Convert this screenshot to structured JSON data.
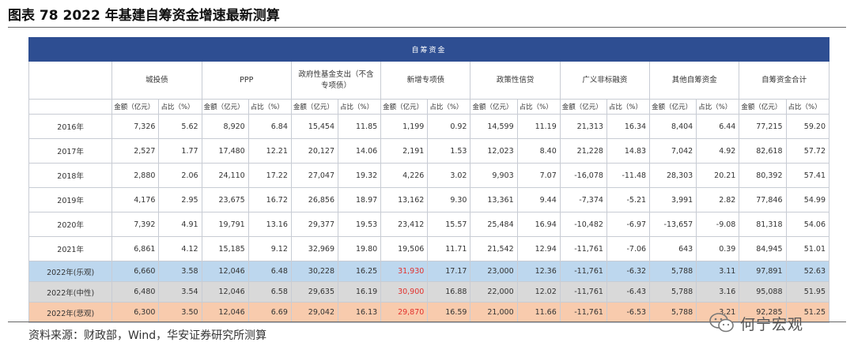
{
  "title": "图表 78 2022 年基建自筹资金增速最新测算",
  "band_label": "自筹资金",
  "categories": [
    "城投债",
    "PPP",
    "政府性基金支出（不含专项债）",
    "新增专项债",
    "政策性信贷",
    "广义非标融资",
    "其他自筹资金",
    "自筹资金合计"
  ],
  "sub_headers": {
    "amount": "金额（亿元）",
    "share": "占比（%）"
  },
  "rows": [
    {
      "label": "2016年",
      "cells": [
        "7,326",
        "5.62",
        "8,920",
        "6.84",
        "15,454",
        "11.85",
        "1,199",
        "0.92",
        "14,599",
        "11.19",
        "21,313",
        "16.34",
        "8,404",
        "6.44",
        "77,215",
        "59.20"
      ]
    },
    {
      "label": "2017年",
      "cells": [
        "2,527",
        "1.77",
        "17,480",
        "12.21",
        "20,127",
        "14.06",
        "2,191",
        "1.53",
        "12,023",
        "8.40",
        "21,228",
        "14.83",
        "7,042",
        "4.92",
        "82,618",
        "57.72"
      ]
    },
    {
      "label": "2018年",
      "cells": [
        "2,880",
        "2.06",
        "24,110",
        "17.22",
        "27,047",
        "19.32",
        "4,226",
        "3.02",
        "9,903",
        "7.07",
        "-16,078",
        "-11.48",
        "28,303",
        "20.21",
        "80,392",
        "57.41"
      ]
    },
    {
      "label": "2019年",
      "cells": [
        "4,176",
        "2.95",
        "23,675",
        "16.72",
        "26,856",
        "18.97",
        "13,162",
        "9.30",
        "13,361",
        "9.44",
        "-7,374",
        "-5.21",
        "3,991",
        "2.82",
        "77,846",
        "54.99"
      ]
    },
    {
      "label": "2020年",
      "cells": [
        "7,392",
        "4.91",
        "19,791",
        "13.16",
        "29,377",
        "19.53",
        "23,412",
        "15.57",
        "25,484",
        "16.94",
        "-10,482",
        "-6.97",
        "-13,657",
        "-9.08",
        "81,318",
        "54.06"
      ]
    },
    {
      "label": "2021年",
      "cells": [
        "6,861",
        "4.12",
        "15,185",
        "9.12",
        "32,969",
        "19.80",
        "19,506",
        "11.71",
        "21,542",
        "12.94",
        "-11,761",
        "-7.06",
        "643",
        "0.39",
        "84,945",
        "51.01"
      ]
    },
    {
      "label": "2022年(乐观)",
      "cells": [
        "6,660",
        "3.58",
        "12,046",
        "6.48",
        "30,228",
        "16.25",
        "31,930",
        "17.17",
        "23,000",
        "12.36",
        "-11,761",
        "-6.32",
        "5,788",
        "3.11",
        "97,891",
        "52.63"
      ]
    },
    {
      "label": "2022年(中性)",
      "cells": [
        "6,480",
        "3.54",
        "12,046",
        "6.58",
        "29,635",
        "16.19",
        "30,900",
        "16.88",
        "22,000",
        "12.02",
        "-11,761",
        "-6.43",
        "5,788",
        "3.16",
        "95,088",
        "51.95"
      ]
    },
    {
      "label": "2022年(悲观)",
      "cells": [
        "6,300",
        "3.50",
        "12,046",
        "6.69",
        "29,042",
        "16.13",
        "29,870",
        "16.59",
        "21,000",
        "11.66",
        "-11,761",
        "-6.53",
        "5,788",
        "3.21",
        "92,285",
        "51.25"
      ]
    }
  ],
  "source": "资料来源：财政部，Wind，华安证券研究所测算",
  "watermark": "何宁宏观",
  "colors": {
    "band": "#2e4e92",
    "optimistic": "#bdd7ee",
    "neutral": "#d9d9d9",
    "pessimistic": "#f8cbad",
    "highlight_text": "#e2322d"
  }
}
